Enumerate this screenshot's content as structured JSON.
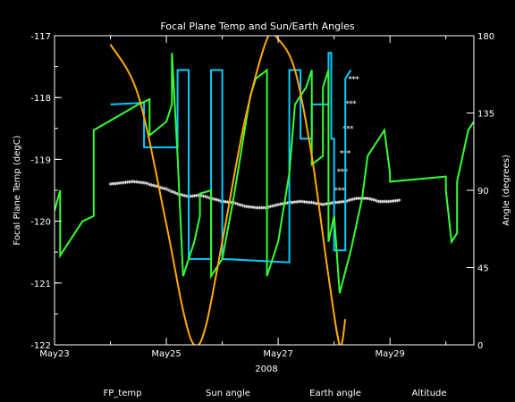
{
  "chart_data": {
    "type": "line",
    "title": "Focal Plane Temp and Sun/Earth Angles",
    "xlabel": "2008",
    "ylabel_left": "Focal Plane Temp (degC)",
    "ylabel_right": "Angle (degrees)",
    "x_ticks": [
      "May23",
      "May25",
      "May27",
      "May29"
    ],
    "x_tick_days": [
      23,
      25,
      27,
      29
    ],
    "xlim": [
      23,
      30.5
    ],
    "ylim_left": [
      -122,
      -117
    ],
    "ylim_right": [
      0,
      180
    ],
    "left_ticks": [
      "-122",
      "-121",
      "-120",
      "-119",
      "-118",
      "-117"
    ],
    "right_ticks": [
      "0",
      "45",
      "90",
      "135",
      "180"
    ],
    "legend_position": "bottom",
    "grid": false,
    "series": [
      {
        "name": "FP_temp",
        "color": "#ffffff",
        "style": "points",
        "values": [
          [
            24.0,
            -119.42
          ],
          [
            24.2,
            -119.4
          ],
          [
            24.4,
            -119.38
          ],
          [
            24.6,
            -119.4
          ],
          [
            24.8,
            -119.45
          ],
          [
            25.0,
            -119.5
          ],
          [
            25.2,
            -119.58
          ],
          [
            25.4,
            -119.62
          ],
          [
            25.6,
            -119.6
          ],
          [
            25.8,
            -119.65
          ],
          [
            26.0,
            -119.7
          ],
          [
            26.2,
            -119.72
          ],
          [
            26.4,
            -119.78
          ],
          [
            26.6,
            -119.8
          ],
          [
            26.8,
            -119.8
          ],
          [
            27.0,
            -119.75
          ],
          [
            27.2,
            -119.72
          ],
          [
            27.4,
            -119.7
          ],
          [
            27.6,
            -119.72
          ],
          [
            27.8,
            -119.75
          ],
          [
            28.0,
            -119.72
          ],
          [
            28.2,
            -119.7
          ],
          [
            28.4,
            -119.65
          ],
          [
            28.6,
            -119.65
          ],
          [
            28.8,
            -119.7
          ],
          [
            29.0,
            -119.7
          ],
          [
            29.2,
            -119.68
          ]
        ],
        "spike": [
          [
            28.1,
            -119.5
          ],
          [
            28.15,
            -119.2
          ],
          [
            28.2,
            -118.9
          ],
          [
            28.25,
            -118.5
          ],
          [
            28.3,
            -118.1
          ],
          [
            28.35,
            -117.7
          ]
        ]
      },
      {
        "name": "Sun angle",
        "color": "#00ccff",
        "values": [
          [
            24.0,
            140
          ],
          [
            24.6,
            141
          ],
          [
            24.6,
            115
          ],
          [
            24.75,
            115
          ],
          [
            24.75,
            115
          ],
          [
            25.2,
            115
          ],
          [
            25.2,
            160
          ],
          [
            25.4,
            160
          ],
          [
            25.4,
            50
          ],
          [
            25.8,
            50
          ],
          [
            25.8,
            160
          ],
          [
            26.0,
            160
          ],
          [
            26.0,
            50
          ],
          [
            27.2,
            48
          ],
          [
            27.2,
            160
          ],
          [
            27.4,
            160
          ],
          [
            27.4,
            120
          ],
          [
            27.6,
            120
          ],
          [
            27.6,
            140
          ],
          [
            27.9,
            140
          ],
          [
            27.9,
            170
          ],
          [
            27.95,
            170
          ],
          [
            27.95,
            120
          ],
          [
            28.0,
            120
          ],
          [
            28.0,
            55
          ],
          [
            28.2,
            55
          ],
          [
            28.2,
            155
          ],
          [
            28.3,
            160
          ]
        ]
      },
      {
        "name": "Earth angle",
        "color": "#33ff33",
        "values": [
          [
            23.0,
            78
          ],
          [
            23.1,
            90
          ],
          [
            23.1,
            52
          ],
          [
            23.5,
            72
          ],
          [
            23.7,
            75
          ],
          [
            23.7,
            125
          ],
          [
            24.5,
            140
          ],
          [
            24.7,
            143
          ],
          [
            24.7,
            122
          ],
          [
            25.0,
            130
          ],
          [
            25.1,
            140
          ],
          [
            25.1,
            170
          ],
          [
            25.2,
            110
          ],
          [
            25.3,
            40
          ],
          [
            25.5,
            60
          ],
          [
            25.6,
            75
          ],
          [
            25.6,
            88
          ],
          [
            25.8,
            90
          ],
          [
            25.8,
            40
          ],
          [
            26.0,
            50
          ],
          [
            26.2,
            85
          ],
          [
            26.3,
            105
          ],
          [
            26.4,
            125
          ],
          [
            26.5,
            145
          ],
          [
            26.6,
            155
          ],
          [
            26.8,
            160
          ],
          [
            26.8,
            40
          ],
          [
            27.0,
            60
          ],
          [
            27.2,
            100
          ],
          [
            27.3,
            140
          ],
          [
            27.5,
            150
          ],
          [
            27.6,
            160
          ],
          [
            27.6,
            105
          ],
          [
            27.8,
            110
          ],
          [
            27.8,
            150
          ],
          [
            27.9,
            160
          ],
          [
            27.9,
            60
          ],
          [
            28.0,
            75
          ],
          [
            28.1,
            30
          ],
          [
            28.3,
            55
          ],
          [
            28.5,
            85
          ],
          [
            28.6,
            110
          ],
          [
            28.9,
            125
          ],
          [
            29.0,
            100
          ],
          [
            29.0,
            95
          ],
          [
            30.0,
            98
          ],
          [
            30.0,
            90
          ],
          [
            30.1,
            60
          ],
          [
            30.2,
            65
          ],
          [
            30.2,
            95
          ],
          [
            30.4,
            125
          ],
          [
            30.5,
            130
          ]
        ]
      },
      {
        "name": "Altitude",
        "color": "#ffaa00",
        "values": [
          [
            24.0,
            175
          ],
          [
            24.5,
            145
          ],
          [
            25.0,
            70
          ],
          [
            25.3,
            20
          ],
          [
            25.5,
            0
          ],
          [
            25.7,
            10
          ],
          [
            26.0,
            60
          ],
          [
            26.4,
            130
          ],
          [
            26.8,
            178
          ],
          [
            27.0,
            178
          ],
          [
            27.3,
            160
          ],
          [
            27.6,
            110
          ],
          [
            27.9,
            40
          ],
          [
            28.1,
            0
          ],
          [
            28.2,
            15
          ]
        ]
      }
    ]
  }
}
